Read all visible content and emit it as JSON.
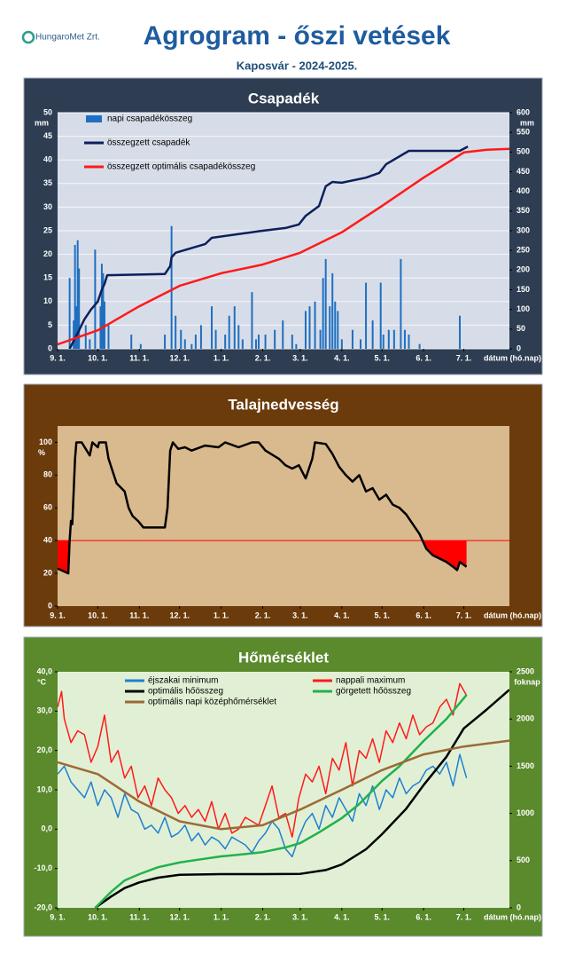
{
  "header": {
    "logo": "HungaroMet Zrt.",
    "title": "Agrogram - őszi vetések",
    "subtitle": "Kaposvár  - 2024-2025."
  },
  "chart_data": [
    {
      "type": "combo",
      "title": "Csapadék",
      "xlabel": "dátum (hó.nap)",
      "ylabel": "mm",
      "y2label": "mm",
      "panel_color": "#2e3d52",
      "plot_color": "#d7dde8",
      "grid": true,
      "legend": "upper left",
      "legend_columns": 1,
      "xlim": [
        0,
        337
      ],
      "xticks": [
        {
          "value": 0,
          "label": "9. 1."
        },
        {
          "value": 30,
          "label": "10. 1."
        },
        {
          "value": 61,
          "label": "11. 1."
        },
        {
          "value": 91,
          "label": "12. 1."
        },
        {
          "value": 122,
          "label": "1. 1."
        },
        {
          "value": 153,
          "label": "2. 1."
        },
        {
          "value": 181,
          "label": "3. 1."
        },
        {
          "value": 212,
          "label": "4. 1."
        },
        {
          "value": 242,
          "label": "5. 1."
        },
        {
          "value": 273,
          "label": "6. 1."
        },
        {
          "value": 303,
          "label": "7. 1."
        }
      ],
      "ylim": [
        0,
        50
      ],
      "yticks": [
        0,
        5,
        10,
        15,
        20,
        25,
        30,
        35,
        40,
        45,
        50
      ],
      "y2lim": [
        0,
        600
      ],
      "y2ticks": [
        0,
        50,
        100,
        150,
        200,
        250,
        300,
        350,
        400,
        450,
        500,
        550,
        600
      ],
      "series": [
        {
          "name": "napi csapadékösszeg",
          "type": "bar",
          "color": "#1f6fc0",
          "x": [
            9,
            12,
            13,
            14,
            15,
            16,
            21,
            24,
            28,
            32,
            33,
            34,
            35,
            38,
            55,
            62,
            80,
            85,
            88,
            92,
            95,
            100,
            103,
            107,
            115,
            118,
            125,
            128,
            132,
            135,
            138,
            145,
            148,
            150,
            155,
            162,
            168,
            175,
            178,
            185,
            188,
            192,
            196,
            198,
            200,
            203,
            205,
            207,
            209,
            212,
            220,
            226,
            230,
            235,
            241,
            243,
            247,
            251,
            256,
            259,
            262,
            270,
            300
          ],
          "values": [
            15,
            6,
            22,
            9,
            23,
            17,
            5,
            2,
            21,
            9,
            18,
            16,
            10,
            5,
            3,
            1,
            3,
            26,
            7,
            4,
            2,
            1,
            3,
            5,
            9,
            4,
            3,
            7,
            9,
            5,
            2,
            12,
            2,
            3,
            3,
            4,
            6,
            3,
            1,
            8,
            9,
            10,
            4,
            15,
            19,
            9,
            16,
            10,
            8,
            2,
            4,
            2,
            14,
            6,
            14,
            3,
            4,
            4,
            19,
            4,
            3,
            1,
            7
          ]
        },
        {
          "name": "összegzett csapadék",
          "type": "line",
          "axis": "y2",
          "color": "#0d1f5c",
          "x": [
            9,
            15,
            20,
            25,
            30,
            33,
            35,
            37,
            80,
            84,
            85,
            88,
            110,
            115,
            153,
            170,
            180,
            185,
            195,
            200,
            205,
            212,
            230,
            240,
            245,
            262,
            300,
            306
          ],
          "values": [
            0,
            40,
            75,
            100,
            120,
            150,
            165,
            187,
            190,
            210,
            232,
            244,
            266,
            282,
            300,
            307,
            316,
            338,
            363,
            413,
            424,
            422,
            435,
            447,
            469,
            503,
            503,
            514
          ]
        },
        {
          "name": "összegzett optimális csapadékösszeg",
          "type": "line",
          "axis": "y2",
          "color": "#ff1a1a",
          "x": [
            0,
            30,
            61,
            91,
            122,
            153,
            181,
            212,
            242,
            273,
            303,
            320,
            337
          ],
          "values": [
            11,
            47,
            108,
            160,
            192,
            214,
            244,
            296,
            363,
            435,
            499,
            506,
            508
          ]
        }
      ]
    },
    {
      "type": "line",
      "title": "Talajnedvesség",
      "xlabel": "dátum (hó.nap)",
      "ylabel": "%",
      "panel_color": "#6b3b0c",
      "plot_color": "#d9b98e",
      "grid": false,
      "threshold": 40,
      "threshold_color": "#ff0000",
      "xlim": [
        0,
        337
      ],
      "xticks": [
        {
          "value": 0,
          "label": "9. 1."
        },
        {
          "value": 30,
          "label": "10. 1."
        },
        {
          "value": 61,
          "label": "11. 1."
        },
        {
          "value": 91,
          "label": "12. 1."
        },
        {
          "value": 122,
          "label": "1. 1."
        },
        {
          "value": 153,
          "label": "2. 1."
        },
        {
          "value": 181,
          "label": "3. 1."
        },
        {
          "value": 212,
          "label": "4. 1."
        },
        {
          "value": 242,
          "label": "5. 1."
        },
        {
          "value": 273,
          "label": "6. 1."
        },
        {
          "value": 303,
          "label": "7. 1."
        }
      ],
      "ylim": [
        0,
        110
      ],
      "yticks": [
        0,
        20,
        40,
        60,
        80,
        100
      ],
      "series": [
        {
          "type": "line",
          "color": "#000000",
          "x": [
            0,
            8,
            9,
            10,
            11,
            13,
            14,
            18,
            24,
            26,
            30,
            31,
            36,
            38,
            44,
            50,
            53,
            56,
            60,
            64,
            80,
            82,
            84,
            86,
            90,
            95,
            100,
            110,
            120,
            125,
            135,
            145,
            150,
            155,
            165,
            170,
            175,
            180,
            185,
            190,
            192,
            200,
            205,
            210,
            215,
            220,
            225,
            230,
            235,
            240,
            245,
            250,
            255,
            260,
            265,
            270,
            275,
            280,
            285,
            290,
            295,
            298,
            300,
            305
          ],
          "values": [
            23,
            20,
            40,
            52,
            50,
            90,
            100,
            100,
            92,
            100,
            97,
            100,
            100,
            90,
            75,
            70,
            60,
            55,
            52,
            48,
            48,
            60,
            95,
            100,
            96,
            97,
            95,
            98,
            97,
            100,
            97,
            100,
            100,
            95,
            90,
            86,
            84,
            86,
            78,
            90,
            100,
            99,
            93,
            85,
            80,
            76,
            80,
            70,
            72,
            65,
            68,
            62,
            60,
            56,
            50,
            44,
            35,
            31,
            29,
            27,
            24,
            22,
            27,
            24
          ]
        }
      ]
    },
    {
      "type": "line",
      "title": "Hőmérséklet",
      "xlabel": "dátum (hó.nap)",
      "ylabel": "°C",
      "y2label": "foknap",
      "panel_color": "#5a8a2c",
      "plot_color": "#e1f0d5",
      "grid": false,
      "legend": "upper center",
      "legend_columns": 2,
      "xlim": [
        0,
        337
      ],
      "xticks": [
        {
          "value": 0,
          "label": "9. 1."
        },
        {
          "value": 30,
          "label": "10. 1."
        },
        {
          "value": 61,
          "label": "11. 1."
        },
        {
          "value": 91,
          "label": "12. 1."
        },
        {
          "value": 122,
          "label": "1. 1."
        },
        {
          "value": 153,
          "label": "2. 1."
        },
        {
          "value": 181,
          "label": "3. 1."
        },
        {
          "value": 212,
          "label": "4. 1."
        },
        {
          "value": 242,
          "label": "5. 1."
        },
        {
          "value": 273,
          "label": "6. 1."
        },
        {
          "value": 303,
          "label": "7. 1."
        }
      ],
      "ylim": [
        -20,
        40
      ],
      "yticks": [
        {
          "value": -20,
          "label": "-20,0"
        },
        {
          "value": -10,
          "label": "-10,0"
        },
        {
          "value": 0,
          "label": "0,0"
        },
        {
          "value": 10,
          "label": "10,0"
        },
        {
          "value": 20,
          "label": "20,0"
        },
        {
          "value": 30,
          "label": "30,0"
        },
        {
          "value": 40,
          "label": "40,0"
        }
      ],
      "y2lim": [
        0,
        2500
      ],
      "y2ticks": [
        0,
        500,
        1000,
        1500,
        2000,
        2500
      ],
      "series": [
        {
          "name": "éjszakai minimum",
          "type": "line",
          "color": "#1f7fd0",
          "width": 1.5,
          "x": [
            0,
            5,
            10,
            15,
            20,
            25,
            30,
            35,
            40,
            45,
            50,
            55,
            60,
            65,
            70,
            75,
            80,
            85,
            90,
            95,
            100,
            105,
            110,
            115,
            120,
            125,
            130,
            135,
            140,
            145,
            150,
            155,
            160,
            165,
            170,
            175,
            180,
            185,
            190,
            195,
            200,
            205,
            210,
            215,
            220,
            225,
            230,
            235,
            240,
            245,
            250,
            255,
            260,
            265,
            270,
            275,
            280,
            285,
            290,
            295,
            300,
            305
          ],
          "values": [
            14,
            16,
            12,
            10,
            8,
            12,
            6,
            10,
            8,
            3,
            9,
            5,
            4,
            0,
            1,
            -1,
            3,
            -2,
            -1,
            1,
            -3,
            -1,
            -4,
            -2,
            -3,
            -5,
            -2,
            -3,
            -4,
            -6,
            -3,
            -1,
            2,
            0,
            -5,
            -7,
            -2,
            2,
            4,
            0,
            6,
            3,
            8,
            5,
            2,
            9,
            6,
            11,
            5,
            10,
            8,
            13,
            9,
            11,
            12,
            15,
            16,
            14,
            17,
            11,
            19,
            13
          ]
        },
        {
          "name": "nappali maximum",
          "type": "line",
          "color": "#ff1a1a",
          "width": 1.5,
          "x": [
            0,
            3,
            5,
            10,
            15,
            20,
            25,
            30,
            35,
            40,
            45,
            50,
            55,
            60,
            65,
            70,
            75,
            80,
            85,
            90,
            95,
            100,
            105,
            110,
            115,
            120,
            125,
            130,
            135,
            140,
            145,
            150,
            155,
            160,
            165,
            170,
            175,
            180,
            185,
            190,
            195,
            200,
            205,
            210,
            215,
            220,
            225,
            230,
            235,
            240,
            245,
            250,
            255,
            260,
            265,
            270,
            275,
            280,
            285,
            290,
            295,
            300,
            305
          ],
          "values": [
            31,
            35,
            28,
            22,
            25,
            24,
            17,
            21,
            29,
            17,
            20,
            13,
            16,
            8,
            11,
            6,
            13,
            10,
            8,
            4,
            6,
            3,
            5,
            2,
            7,
            0,
            4,
            -1,
            0,
            3,
            2,
            1,
            6,
            11,
            3,
            4,
            -2,
            8,
            14,
            12,
            16,
            9,
            18,
            15,
            22,
            11,
            20,
            18,
            23,
            17,
            25,
            22,
            27,
            23,
            29,
            24,
            26,
            27,
            31,
            33,
            29,
            37,
            34
          ]
        },
        {
          "name": "optimális hőösszeg",
          "type": "line",
          "axis": "y2",
          "color": "#000000",
          "width": 2.5,
          "x": [
            28,
            40,
            50,
            61,
            75,
            91,
            122,
            153,
            181,
            200,
            212,
            230,
            242,
            260,
            273,
            290,
            303,
            320,
            337
          ],
          "values": [
            0,
            120,
            210,
            270,
            320,
            350,
            357,
            357,
            360,
            400,
            460,
            620,
            780,
            1050,
            1300,
            1600,
            1900,
            2100,
            2310
          ]
        },
        {
          "name": "görgetett hőösszeg",
          "type": "line",
          "axis": "y2",
          "color": "#22b14c",
          "width": 2.5,
          "x": [
            28,
            40,
            50,
            61,
            75,
            91,
            105,
            122,
            140,
            153,
            170,
            181,
            195,
            212,
            225,
            242,
            255,
            273,
            290,
            305
          ],
          "values": [
            0,
            170,
            290,
            357,
            430,
            480,
            510,
            545,
            570,
            590,
            640,
            686,
            800,
            950,
            1100,
            1344,
            1500,
            1767,
            2000,
            2255
          ]
        },
        {
          "name": "optimális napi középhőmérséklet",
          "type": "line",
          "color": "#9c6a35",
          "width": 2.5,
          "x": [
            0,
            30,
            61,
            91,
            122,
            153,
            181,
            212,
            242,
            273,
            303,
            337
          ],
          "values": [
            17,
            14,
            7,
            2,
            0,
            1,
            5,
            10,
            15,
            19,
            21,
            22.5
          ]
        }
      ]
    }
  ]
}
